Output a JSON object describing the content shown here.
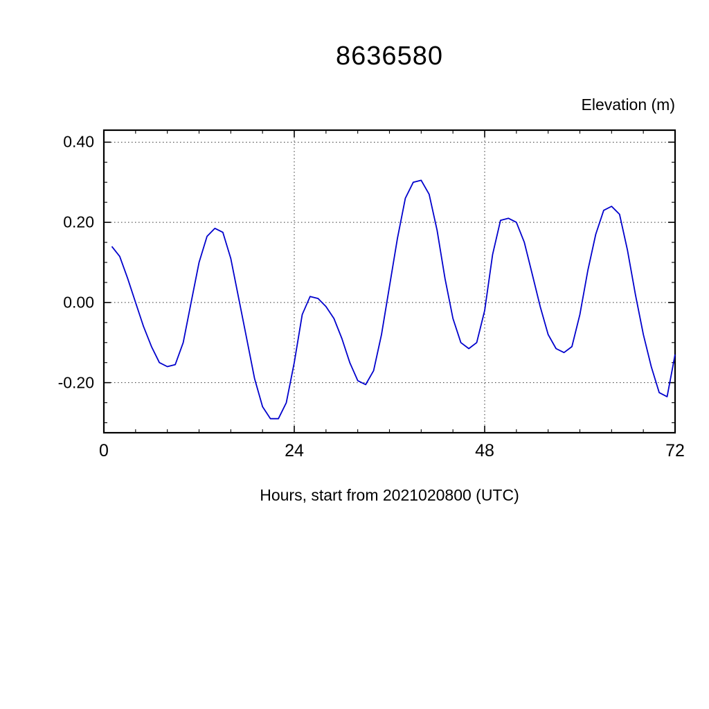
{
  "title": "8636580",
  "y_unit_label": "Elevation (m)",
  "x_axis_label": "Hours, start from 2021020800 (UTC)",
  "chart_data": {
    "type": "line",
    "title": "8636580",
    "xlabel": "Hours, start from 2021020800 (UTC)",
    "ylabel": "Elevation (m)",
    "xlim": [
      0,
      72
    ],
    "ylim": [
      -0.325,
      0.43
    ],
    "x_major_ticks": [
      0,
      24,
      48,
      72
    ],
    "x_tick_labels": [
      "0",
      "24",
      "48",
      "72"
    ],
    "x_minor_step": 4,
    "y_major_ticks": [
      -0.2,
      0.0,
      0.2,
      0.4
    ],
    "y_tick_labels": [
      "-0.20",
      "0.00",
      "0.20",
      "0.40"
    ],
    "y_minor_step": 0.05,
    "grid": "dotted-at-major-ticks",
    "legend": "none",
    "line_color": "#0000cc",
    "series": [
      {
        "name": "Elevation (m)",
        "color": "#0000cc",
        "x": [
          1,
          2,
          3,
          4,
          5,
          6,
          7,
          8,
          9,
          10,
          11,
          12,
          13,
          14,
          15,
          16,
          17,
          18,
          19,
          20,
          21,
          22,
          23,
          24,
          25,
          26,
          27,
          28,
          29,
          30,
          31,
          32,
          33,
          34,
          35,
          36,
          37,
          38,
          39,
          40,
          41,
          42,
          43,
          44,
          45,
          46,
          47,
          48,
          49,
          50,
          51,
          52,
          53,
          54,
          55,
          56,
          57,
          58,
          59,
          60,
          61,
          62,
          63,
          64,
          65,
          66,
          67,
          68,
          69,
          70,
          71,
          72
        ],
        "values": [
          0.14,
          0.115,
          0.06,
          0.0,
          -0.06,
          -0.11,
          -0.15,
          -0.16,
          -0.155,
          -0.1,
          0.0,
          0.1,
          0.165,
          0.185,
          0.175,
          0.11,
          0.01,
          -0.09,
          -0.19,
          -0.26,
          -0.29,
          -0.29,
          -0.25,
          -0.15,
          -0.03,
          0.015,
          0.01,
          -0.01,
          -0.04,
          -0.09,
          -0.15,
          -0.195,
          -0.205,
          -0.17,
          -0.08,
          0.04,
          0.16,
          0.26,
          0.3,
          0.305,
          0.27,
          0.18,
          0.06,
          -0.04,
          -0.1,
          -0.115,
          -0.1,
          -0.02,
          0.12,
          0.205,
          0.21,
          0.2,
          0.15,
          0.07,
          -0.01,
          -0.08,
          -0.115,
          -0.125,
          -0.11,
          -0.03,
          0.08,
          0.17,
          0.23,
          0.24,
          0.22,
          0.13,
          0.02,
          -0.08,
          -0.16,
          -0.225,
          -0.235,
          -0.13
        ]
      }
    ]
  }
}
